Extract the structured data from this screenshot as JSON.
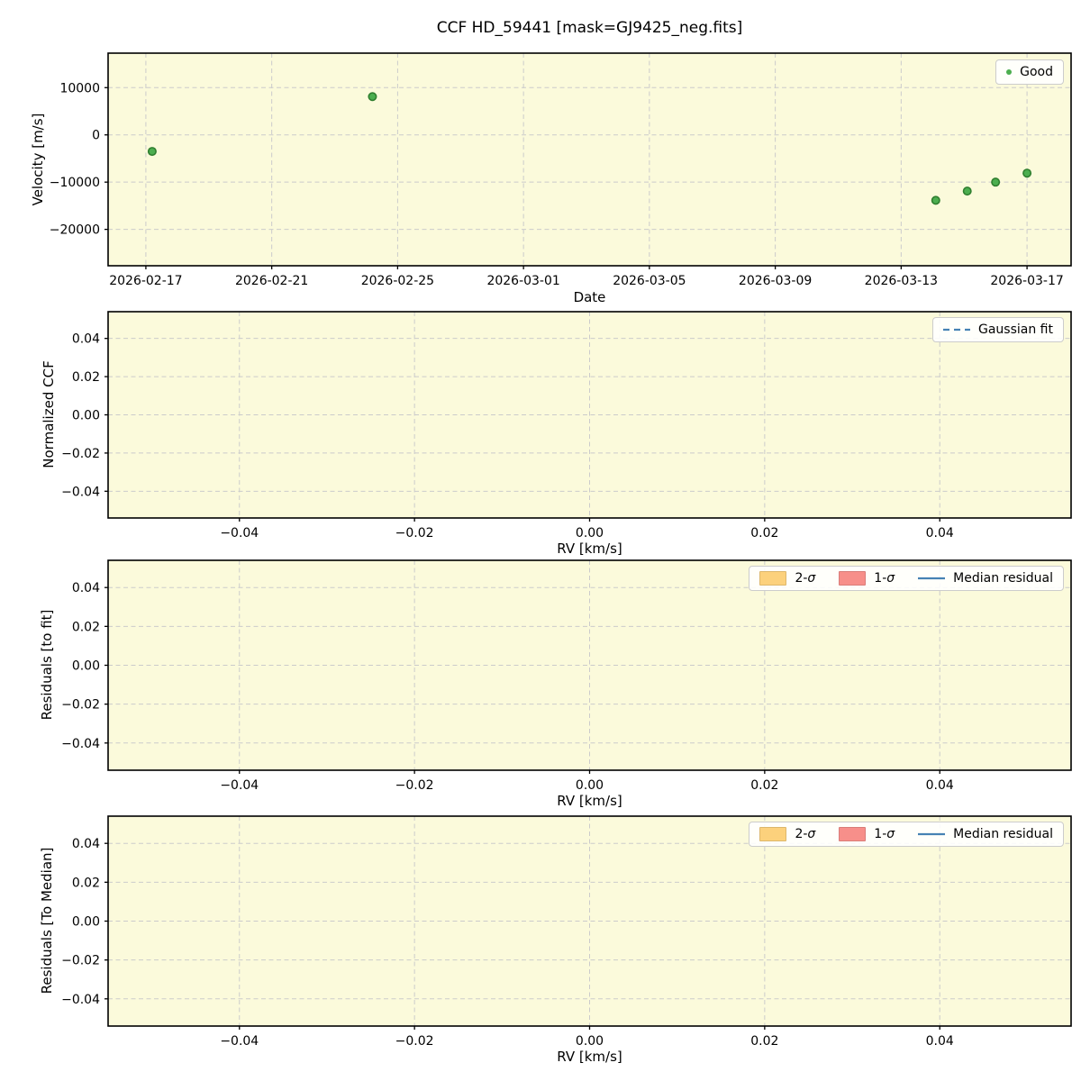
{
  "figure": {
    "title": "CCF HD_59441 [mask=GJ9425_neg.fits]",
    "colors": {
      "plot_bg": "#fbfadb",
      "grid": "#cbcbcb",
      "border": "#000000",
      "good_fill": "#4cae4f",
      "good_edge": "#2f7e2f",
      "fit_blue": "#4682b4",
      "sigma2_orange": "#fcd17c",
      "sigma1_red": "#f78f8a"
    }
  },
  "chart_data": [
    {
      "type": "scatter",
      "title": "CCF HD_59441 [mask=GJ9425_neg.fits]",
      "xlabel": "Date",
      "ylabel": "Velocity [m/s]",
      "xlim": [
        -1.2,
        29.4
      ],
      "ylim": [
        -27700,
        17300
      ],
      "grid": true,
      "x_ticks": {
        "values": [
          0,
          4,
          8,
          12,
          16,
          20,
          24,
          28
        ],
        "labels": [
          "2026-02-17",
          "2026-02-21",
          "2026-02-25",
          "2026-03-01",
          "2026-03-05",
          "2026-03-09",
          "2026-03-13",
          "2026-03-17"
        ]
      },
      "y_ticks": {
        "values": [
          10000,
          0,
          -10000,
          -20000
        ],
        "labels": [
          "10000",
          "0",
          "−10000",
          "−20000"
        ]
      },
      "series": [
        {
          "name": "Good",
          "marker": "circle",
          "points": [
            {
              "date": "2026-02-17",
              "x": 0.2,
              "y": -3500
            },
            {
              "date": "2026-02-24",
              "x": 7.2,
              "y": 8100
            },
            {
              "date": "2026-03-14",
              "x": 25.1,
              "y": -13850
            },
            {
              "date": "2026-03-15",
              "x": 26.1,
              "y": -11900
            },
            {
              "date": "2026-03-16",
              "x": 27.0,
              "y": -10000
            },
            {
              "date": "2026-03-17",
              "x": 28.0,
              "y": -8100
            }
          ]
        }
      ],
      "legend_position": "upper right",
      "legend": [
        {
          "label": "Good",
          "marker": "dot",
          "color_key": "good_fill"
        }
      ]
    },
    {
      "type": "line",
      "xlabel": "RV [km/s]",
      "ylabel": "Normalized CCF",
      "xlim": [
        -0.055,
        0.055
      ],
      "ylim": [
        -0.054,
        0.054
      ],
      "grid": true,
      "x_ticks": {
        "values": [
          -0.04,
          -0.02,
          0.0,
          0.02,
          0.04
        ],
        "labels": [
          "−0.04",
          "−0.02",
          "0.00",
          "0.02",
          "0.04"
        ]
      },
      "y_ticks": {
        "values": [
          0.04,
          0.02,
          0.0,
          -0.02,
          -0.04
        ],
        "labels": [
          "0.04",
          "0.02",
          "0.00",
          "−0.02",
          "−0.04"
        ]
      },
      "series": [],
      "legend_position": "upper right",
      "legend": [
        {
          "label": "Gaussian fit",
          "marker": "dashed_line",
          "color_key": "fit_blue"
        }
      ]
    },
    {
      "type": "line",
      "xlabel": "RV [km/s]",
      "ylabel": "Residuals [to fit]",
      "xlim": [
        -0.055,
        0.055
      ],
      "ylim": [
        -0.054,
        0.054
      ],
      "grid": true,
      "x_ticks": {
        "values": [
          -0.04,
          -0.02,
          0.0,
          0.02,
          0.04
        ],
        "labels": [
          "−0.04",
          "−0.02",
          "0.00",
          "0.02",
          "0.04"
        ]
      },
      "y_ticks": {
        "values": [
          0.04,
          0.02,
          0.0,
          -0.02,
          -0.04
        ],
        "labels": [
          "0.04",
          "0.02",
          "0.00",
          "−0.02",
          "−0.04"
        ]
      },
      "series": [],
      "legend_position": "upper right",
      "legend": [
        {
          "label": "2-σ",
          "marker": "patch",
          "color_key": "sigma2_orange"
        },
        {
          "label": "1-σ",
          "marker": "patch",
          "color_key": "sigma1_red"
        },
        {
          "label": "Median residual",
          "marker": "line",
          "color_key": "fit_blue"
        }
      ]
    },
    {
      "type": "line",
      "xlabel": "RV [km/s]",
      "ylabel": "Residuals [To Median]",
      "xlim": [
        -0.055,
        0.055
      ],
      "ylim": [
        -0.054,
        0.054
      ],
      "grid": true,
      "x_ticks": {
        "values": [
          -0.04,
          -0.02,
          0.0,
          0.02,
          0.04
        ],
        "labels": [
          "−0.04",
          "−0.02",
          "0.00",
          "0.02",
          "0.04"
        ]
      },
      "y_ticks": {
        "values": [
          0.04,
          0.02,
          0.0,
          -0.02,
          -0.04
        ],
        "labels": [
          "0.04",
          "0.02",
          "0.00",
          "−0.02",
          "−0.04"
        ]
      },
      "series": [],
      "legend_position": "upper right",
      "legend": [
        {
          "label": "2-σ",
          "marker": "patch",
          "color_key": "sigma2_orange"
        },
        {
          "label": "1-σ",
          "marker": "patch",
          "color_key": "sigma1_red"
        },
        {
          "label": "Median residual",
          "marker": "line",
          "color_key": "fit_blue"
        }
      ]
    }
  ]
}
